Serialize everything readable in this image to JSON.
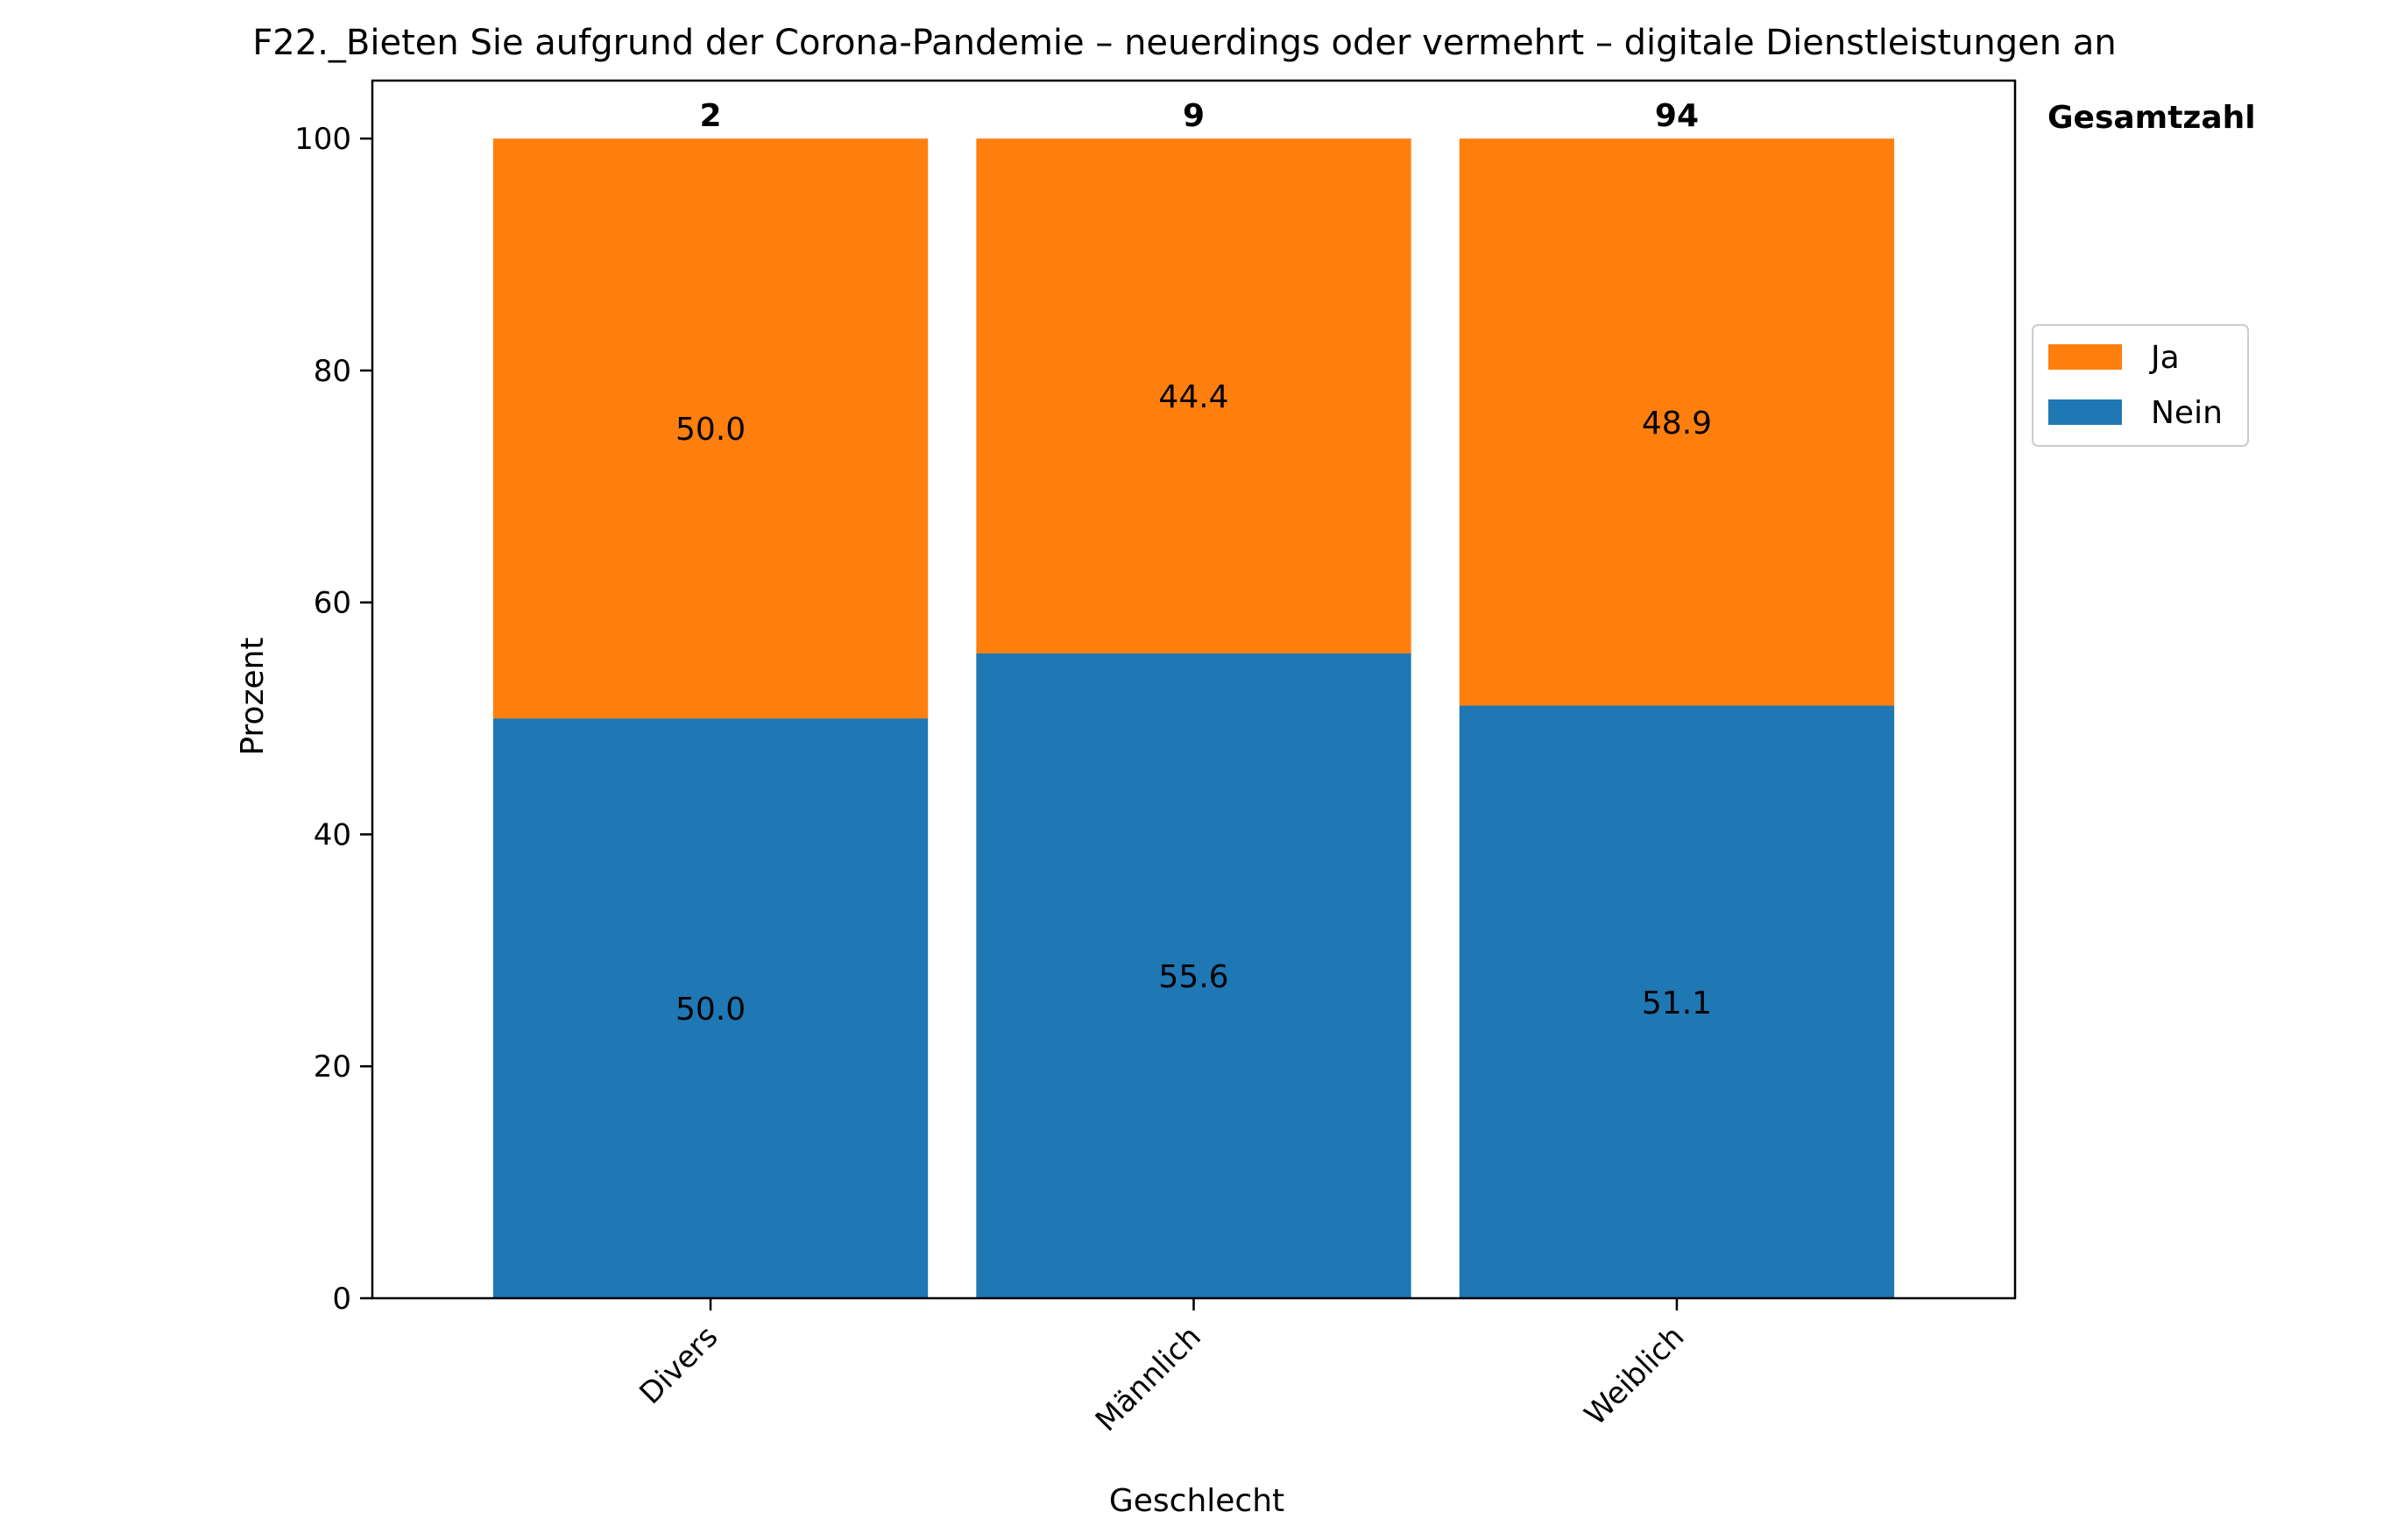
{
  "chart_data": {
    "type": "bar",
    "stacked": true,
    "title": "F22._Bieten Sie aufgrund der Corona-Pandemie – neuerdings oder vermehrt – digitale Dienstleistungen an",
    "xlabel": "Geschlecht",
    "ylabel": "Prozent",
    "categories": [
      "Divers",
      "Männlich",
      "Weiblich"
    ],
    "ylim": [
      0,
      105
    ],
    "yticks": [
      0,
      20,
      40,
      60,
      80,
      100
    ],
    "series": [
      {
        "name": "Nein",
        "color": "#1f77b4",
        "values": [
          50.0,
          55.6,
          51.1
        ],
        "labels": [
          "50.0",
          "55.6",
          "51.1"
        ]
      },
      {
        "name": "Ja",
        "color": "#ff7f0e",
        "values": [
          50.0,
          44.4,
          48.9
        ],
        "labels": [
          "50.0",
          "44.4",
          "48.9"
        ]
      }
    ],
    "totals": {
      "header": "Gesamtzahl",
      "values": [
        "2",
        "9",
        "94"
      ]
    },
    "legend": {
      "placement": "right",
      "order": [
        "Ja",
        "Nein"
      ]
    },
    "grid": false
  }
}
